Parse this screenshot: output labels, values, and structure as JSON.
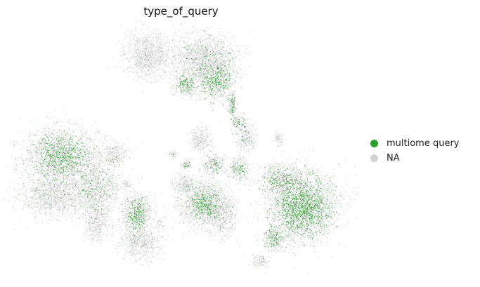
{
  "chart_data": {
    "type": "scatter",
    "title": "type_of_query",
    "xlabel": "",
    "ylabel": "",
    "grid": false,
    "axes_visible": false,
    "legend_placement": "right",
    "series": [
      {
        "name": "NA",
        "color": "#d3d3d3"
      },
      {
        "name": "multiome query",
        "color": "#2ca02c"
      }
    ]
  }
}
